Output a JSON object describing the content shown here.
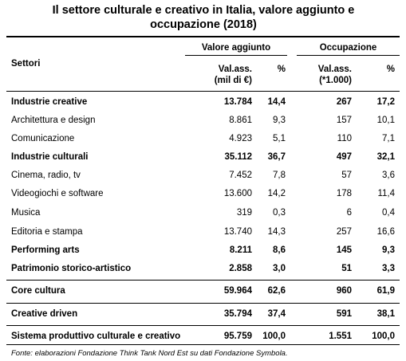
{
  "header": {
    "title": "Il settore culturale e creativo in Italia, valore aggiunto e occupazione (2018)"
  },
  "table": {
    "row_header": "Settori",
    "groups": [
      "Valore aggiunto",
      "Occupazione"
    ],
    "columns": [
      "Val.ass.\n(mil di €)",
      "%",
      "Val.ass.\n(*1.000)",
      "%"
    ],
    "rows": [
      {
        "name": "Industrie creative",
        "cells": [
          "13.784",
          "14,4",
          "267",
          "17,2"
        ],
        "bold": true
      },
      {
        "name": "Architettura e design",
        "cells": [
          "8.861",
          "9,3",
          "157",
          "10,1"
        ],
        "bold": false
      },
      {
        "name": "Comunicazione",
        "cells": [
          "4.923",
          "5,1",
          "110",
          "7,1"
        ],
        "bold": false
      },
      {
        "name": "Industrie culturali",
        "cells": [
          "35.112",
          "36,7",
          "497",
          "32,1"
        ],
        "bold": true
      },
      {
        "name": "Cinema, radio, tv",
        "cells": [
          "7.452",
          "7,8",
          "57",
          "3,6"
        ],
        "bold": false
      },
      {
        "name": "Videogiochi e software",
        "cells": [
          "13.600",
          "14,2",
          "178",
          "11,4"
        ],
        "bold": false
      },
      {
        "name": "Musica",
        "cells": [
          "319",
          "0,3",
          "6",
          "0,4"
        ],
        "bold": false
      },
      {
        "name": "Editoria e stampa",
        "cells": [
          "13.740",
          "14,3",
          "257",
          "16,6"
        ],
        "bold": false
      },
      {
        "name": "Performing arts",
        "cells": [
          "8.211",
          "8,6",
          "145",
          "9,3"
        ],
        "bold": true
      },
      {
        "name": "Patrimonio storico-artistico",
        "cells": [
          "2.858",
          "3,0",
          "51",
          "3,3"
        ],
        "bold": true
      },
      {
        "name": "Core cultura",
        "cells": [
          "59.964",
          "62,6",
          "960",
          "61,9"
        ],
        "bold": true
      },
      {
        "name": "Creative driven",
        "cells": [
          "35.794",
          "37,4",
          "591",
          "38,1"
        ],
        "bold": true
      },
      {
        "name": "Sistema produttivo culturale e creativo",
        "cells": [
          "95.759",
          "100,0",
          "1.551",
          "100,0"
        ],
        "bold": true
      }
    ]
  },
  "footer": {
    "source": "Fonte: elaborazioni Fondazione Think Tank Nord Est su dati Fondazione Symbola."
  }
}
